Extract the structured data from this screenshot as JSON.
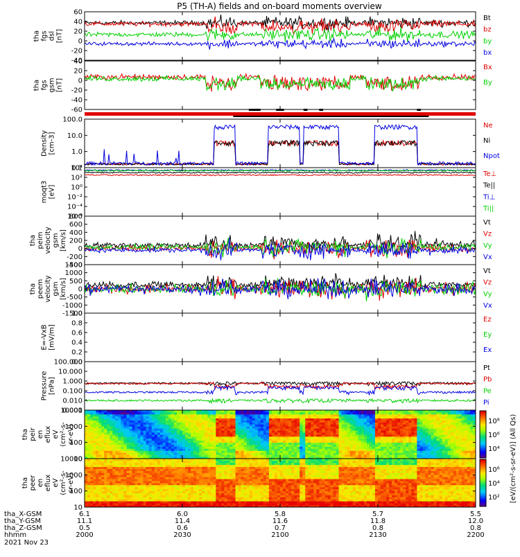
{
  "title": "P5 (TH-A) fields and on-board moments overview",
  "colors": {
    "black": "#000000",
    "red": "#e00000",
    "green": "#00d000",
    "blue": "#0000e0",
    "tealgray": "#4a8080"
  },
  "chart_data": [
    {
      "id": "fgs-dsl",
      "type": "line",
      "ylabel_lines": [
        "tha",
        "fgs",
        "dsl",
        "[nT]"
      ],
      "ylim": [
        -40,
        60
      ],
      "yticks": [
        "60",
        "40",
        "20",
        "0",
        "-20",
        "-40"
      ],
      "series": [
        {
          "name": "Bt",
          "color": "#000000",
          "base": 37,
          "noise": 4
        },
        {
          "name": "bz",
          "color": "#e00000",
          "base": 35,
          "noise": 4
        },
        {
          "name": "by",
          "color": "#00d000",
          "base": 13,
          "noise": 4
        },
        {
          "name": "bx",
          "color": "#0000e0",
          "base": -6,
          "noise": 3
        }
      ]
    },
    {
      "id": "fgs-gsm",
      "type": "line",
      "ylabel_lines": [
        "tha",
        "fgs",
        "gsm",
        "[nT]"
      ],
      "ylim": [
        -75,
        40
      ],
      "yticks": [
        "40",
        "20",
        "0",
        "-20",
        "-40",
        "-60"
      ],
      "series": [
        {
          "name": "Bx",
          "color": "#e00000",
          "base": 2,
          "noise": 4
        },
        {
          "name": "By",
          "color": "#00d000",
          "base": -2,
          "noise": 4
        }
      ]
    },
    {
      "id": "density",
      "type": "line",
      "log": true,
      "ylabel_lines": [
        "Density",
        "[cm-3]"
      ],
      "ylim": [
        0.1,
        200
      ],
      "yticks": [
        "100.0",
        "10.0",
        "1.0",
        "0.1"
      ],
      "series": [
        {
          "name": "Ne",
          "color": "#e00000"
        },
        {
          "name": "Ni",
          "color": "#000000"
        },
        {
          "name": "Npot",
          "color": "#0000e0"
        }
      ]
    },
    {
      "id": "temperature",
      "type": "line",
      "log": true,
      "ylabel_lines": [
        "moqt3",
        "[eV]"
      ],
      "ylim": [
        1e-06,
        10000
      ],
      "yticks": [
        "10⁴",
        "10²",
        "10⁰",
        "10⁻²",
        "10⁻⁴",
        "10⁻⁶"
      ],
      "series": [
        {
          "name": "Te⊥",
          "color": "#e00000"
        },
        {
          "name": "Te||",
          "color": "#000000"
        },
        {
          "name": "Ti⊥",
          "color": "#0000e0"
        },
        {
          "name": "Ti||",
          "color": "#00d000"
        }
      ]
    },
    {
      "id": "peim-velocity",
      "type": "line",
      "ylabel_lines": [
        "tha",
        "peim",
        "velocity",
        "gsm",
        "[km/s]"
      ],
      "ylim": [
        -400,
        800
      ],
      "yticks": [
        "800",
        "600",
        "400",
        "200",
        "0",
        "-200",
        "-400"
      ],
      "series": [
        {
          "name": "Vt",
          "color": "#000000"
        },
        {
          "name": "Vz",
          "color": "#e00000"
        },
        {
          "name": "Vy",
          "color": "#00d000"
        },
        {
          "name": "Vx",
          "color": "#0000e0"
        }
      ]
    },
    {
      "id": "peem-velocity",
      "type": "line",
      "ylabel_lines": [
        "tha",
        "peem",
        "velocity",
        "gsm",
        "[km/s]"
      ],
      "ylim": [
        -1500,
        1500
      ],
      "yticks": [
        "1500",
        "1000",
        "500",
        "0",
        "-500",
        "-1000",
        "-1500"
      ],
      "series": [
        {
          "name": "Vt",
          "color": "#000000"
        },
        {
          "name": "Vz",
          "color": "#e00000"
        },
        {
          "name": "Vy",
          "color": "#00d000"
        },
        {
          "name": "Vx",
          "color": "#0000e0"
        }
      ]
    },
    {
      "id": "efield",
      "type": "line",
      "ylabel_lines": [
        "E=-VxB",
        "[mV/m]"
      ],
      "ylim": [
        0.0,
        1.0
      ],
      "yticks": [
        "1.0",
        "0.8",
        "0.6",
        "0.4",
        "0.2",
        "0.0"
      ],
      "series": [
        {
          "name": "Ez",
          "color": "#e00000"
        },
        {
          "name": "Ey",
          "color": "#00d000"
        },
        {
          "name": "Ex",
          "color": "#0000e0"
        }
      ]
    },
    {
      "id": "pressure",
      "type": "line",
      "log": true,
      "ylabel_lines": [
        "Pressure",
        "[nPa]"
      ],
      "ylim": [
        0.001,
        100
      ],
      "yticks": [
        "100.000",
        "10.000",
        "1.000",
        "0.100",
        "0.010",
        "0.001"
      ],
      "series": [
        {
          "name": "Pt",
          "color": "#000000"
        },
        {
          "name": "Pb",
          "color": "#e00000"
        },
        {
          "name": "Pe",
          "color": "#00d000"
        },
        {
          "name": "Pi",
          "color": "#0000e0"
        }
      ]
    },
    {
      "id": "peir-spectrogram",
      "type": "heatmap",
      "ylabel_lines": [
        "tha",
        "peir",
        "en",
        "eflux",
        "eV",
        "(cm²-s-",
        "sr-eV)"
      ],
      "ylim": [
        10,
        20000
      ],
      "yticks": [
        "10000",
        "1000",
        "100",
        "10"
      ]
    },
    {
      "id": "peer-spectrogram",
      "type": "heatmap",
      "ylabel_lines": [
        "tha",
        "peer",
        "en",
        "eflux",
        "eV",
        "(cm²-s-",
        "sr-eV)"
      ],
      "ylim": [
        10,
        20000
      ],
      "yticks": [
        "10000",
        "1000",
        "100",
        "10"
      ]
    }
  ],
  "colorbars": [
    {
      "ticks": [
        "10⁸",
        "10⁶",
        "10⁴"
      ]
    },
    {
      "ticks": [
        "10⁶",
        "10⁴",
        "10²"
      ]
    }
  ],
  "colorbar_label": "[eV/(cm²-s-sr-eV)] (All Qs)",
  "xaxis": {
    "rows": [
      {
        "label": "tha_X-GSM",
        "values": [
          "6.1",
          "6.0",
          "5.8",
          "5.7",
          "5.5"
        ]
      },
      {
        "label": "tha_Y-GSM",
        "values": [
          "11.1",
          "11.4",
          "11.6",
          "11.8",
          "12.0"
        ]
      },
      {
        "label": "tha_Z-GSM",
        "values": [
          "0.5",
          "0.6",
          "0.7",
          "0.8",
          "0.8"
        ]
      },
      {
        "label": "hhmm",
        "values": [
          "2000",
          "2030",
          "2100",
          "2130",
          "2200"
        ]
      }
    ],
    "date": "2021 Nov 23"
  }
}
